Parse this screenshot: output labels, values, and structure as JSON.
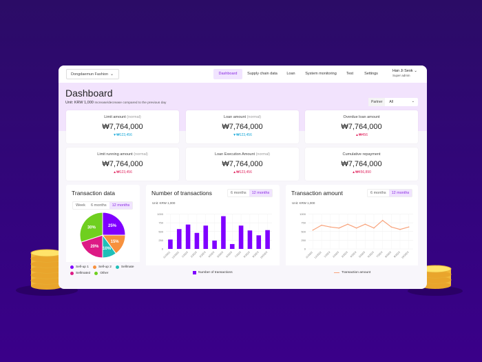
{
  "header": {
    "org": "Dongdaemun Fashion",
    "nav": [
      "Dashboard",
      "Supply chain data",
      "Loan",
      "System monitoring",
      "Test",
      "Settings"
    ],
    "active": "Dashboard",
    "user_name": "Han Ji Seok",
    "user_role": "Super admin"
  },
  "page": {
    "title": "Dashboard",
    "unit": "Unit: KRW 1,000",
    "unit_note": "Increase/decrease compared to the previous day",
    "partner_label": "Partner",
    "partner_value": "All"
  },
  "cards": [
    {
      "label": "Limit amount",
      "tag": "(normal)",
      "value": "₩7,764,000",
      "delta": "▼₩123,456",
      "dir": "down"
    },
    {
      "label": "Loan amount",
      "tag": "(normal)",
      "value": "₩7,764,000",
      "delta": "▼₩123,456",
      "dir": "down"
    },
    {
      "label": "Overdue loan amount",
      "tag": "",
      "value": "₩7,764,000",
      "delta": "▲₩456",
      "dir": "up"
    },
    {
      "label": "Limit running amount",
      "tag": "(normal)",
      "value": "₩7,764,000",
      "delta": "▲₩123,456",
      "dir": "up"
    },
    {
      "label": "Loan Execution Amount",
      "tag": "(normal)",
      "value": "₩7,764,000",
      "delta": "▲₩123,456",
      "dir": "up"
    },
    {
      "label": "Cumulative repayment",
      "tag": "",
      "value": "₩7,764,000",
      "delta": "▲₩456,890",
      "dir": "up"
    }
  ],
  "colors": {
    "accent": "#7f00ff",
    "up": "#e0245e",
    "down": "#18a8d8",
    "line": "#f8a37c"
  },
  "chart_data": [
    {
      "type": "pie",
      "title": "Transaction data",
      "periods": [
        "Week",
        "6 months",
        "12 months"
      ],
      "selected": "12 months",
      "slices": [
        {
          "name": "Sell-up 1",
          "value": 25,
          "label": "25%",
          "color": "#7f00ff"
        },
        {
          "name": "Sell-up 2",
          "value": 15,
          "label": "15%",
          "color": "#f7913d"
        },
        {
          "name": "Sellmate",
          "value": 10,
          "label": "10%",
          "color": "#1fbfb8"
        },
        {
          "name": "Sellmate2",
          "value": 20,
          "label": "20%",
          "color": "#dd1a85"
        },
        {
          "name": "Other",
          "value": 30,
          "label": "30%",
          "color": "#6fcf1f"
        }
      ]
    },
    {
      "type": "bar",
      "title": "Number of transactions",
      "periods": [
        "6 months",
        "12 months"
      ],
      "selected": "12 months",
      "unit": "Unit: KRW 1,000",
      "categories": [
        "11/2022",
        "12/2022",
        "1/2023",
        "2/2023",
        "3/2023",
        "4/2023",
        "5/2023",
        "6/2023",
        "7/2023",
        "8/2023",
        "9/2023",
        "10/2023"
      ],
      "series": [
        {
          "name": "Number of transactions",
          "values": [
            270,
            570,
            700,
            460,
            670,
            240,
            940,
            140,
            670,
            530,
            390,
            540
          ]
        }
      ],
      "yticks": [
        "0",
        "250",
        "500",
        "750",
        "1000"
      ],
      "ylim": [
        0,
        1000
      ],
      "grid": true,
      "legend": "bottom"
    },
    {
      "type": "line",
      "title": "Transaction amount",
      "periods": [
        "6 months",
        "12 months"
      ],
      "selected": "12 months",
      "unit": "Unit: KRW 1,000",
      "categories": [
        "11/2022",
        "12/2022",
        "1/2023",
        "2/2023",
        "3/2023",
        "4/2023",
        "5/2023",
        "6/2023",
        "7/2023",
        "8/2023",
        "9/2023",
        "10/2023"
      ],
      "series": [
        {
          "name": "Transaction amount",
          "values": [
            540,
            680,
            630,
            600,
            710,
            600,
            710,
            600,
            820,
            630,
            560,
            630
          ]
        }
      ],
      "yticks": [
        "0",
        "250",
        "500",
        "750",
        "1000"
      ],
      "ylim": [
        0,
        1000
      ],
      "grid": true,
      "legend": "bottom"
    }
  ]
}
